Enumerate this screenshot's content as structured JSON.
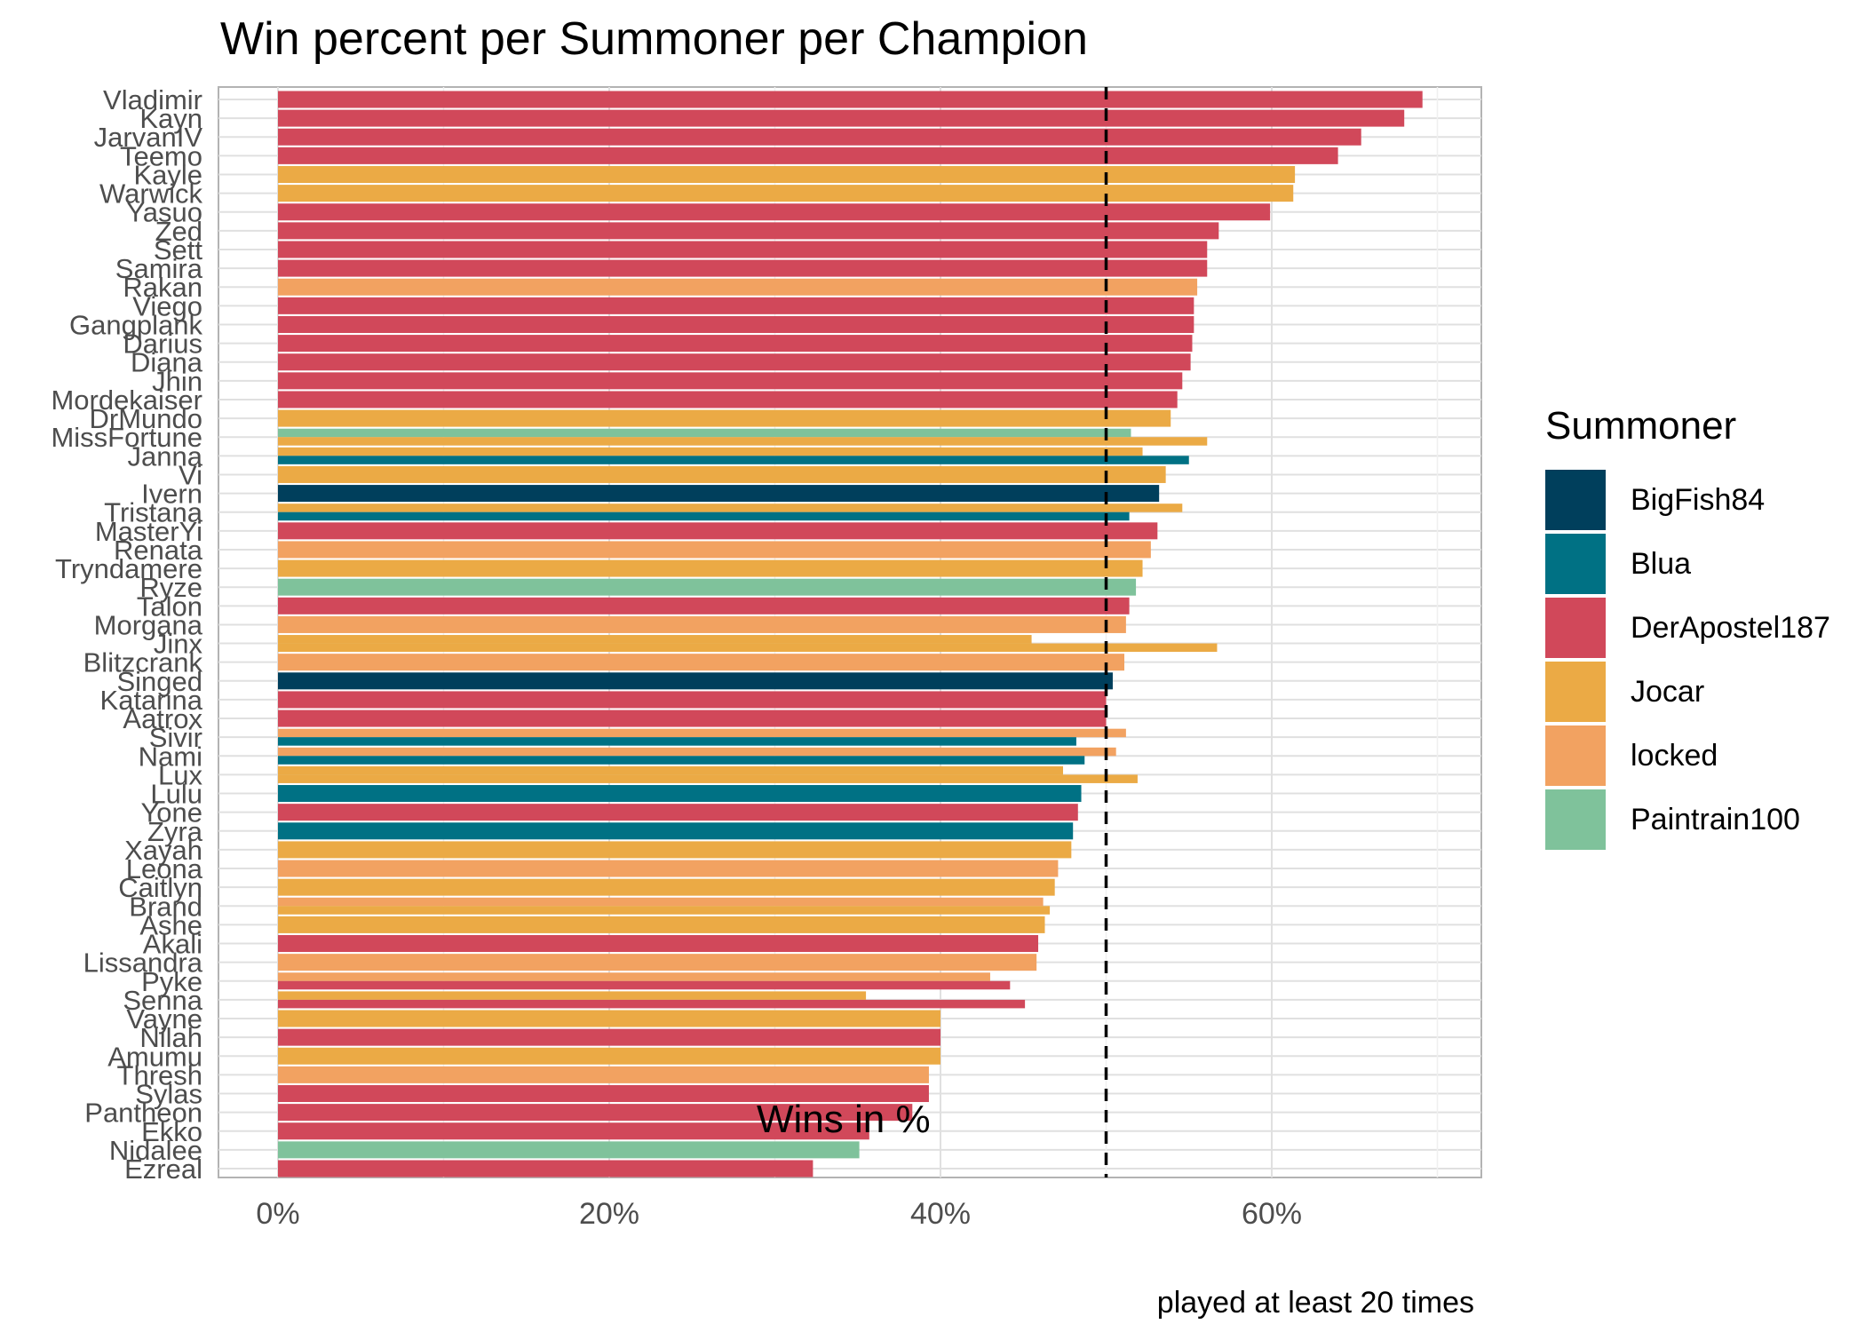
{
  "chart_data": {
    "type": "bar",
    "title": "Win percent per Summoner per Champion",
    "xlabel": "Wins in %",
    "ylabel": "",
    "caption": "played at least 20 times",
    "xlim": [
      -4,
      72.5
    ],
    "x_ticks": [
      0,
      20,
      40,
      60
    ],
    "x_tick_labels": [
      "0%",
      "20%",
      "40%",
      "60%"
    ],
    "reference_line": {
      "x": 50,
      "style": "dashed"
    },
    "legend_title": "Summoner",
    "legend_position": "right",
    "grid": true,
    "summoners": [
      {
        "name": "BigFish84",
        "color": "#003f5c"
      },
      {
        "name": "Blua",
        "color": "#007184"
      },
      {
        "name": "DerApostel187",
        "color": "#d1485a"
      },
      {
        "name": "Jocar",
        "color": "#ebaa45"
      },
      {
        "name": "locked",
        "color": "#f2a261"
      },
      {
        "name": "Paintrain100",
        "color": "#7fc29b"
      }
    ],
    "categories": [
      "Vladimir",
      "Kayn",
      "JarvanIV",
      "Teemo",
      "Kayle",
      "Warwick",
      "Yasuo",
      "Zed",
      "Sett",
      "Samira",
      "Rakan",
      "Viego",
      "Gangplank",
      "Darius",
      "Diana",
      "Jhin",
      "Mordekaiser",
      "DrMundo",
      "MissFortune",
      "Janna",
      "Vi",
      "Ivern",
      "Tristana",
      "MasterYi",
      "Renata",
      "Tryndamere",
      "Ryze",
      "Talon",
      "Morgana",
      "Jinx",
      "Blitzcrank",
      "Singed",
      "Katarina",
      "Aatrox",
      "Sivir",
      "Nami",
      "Lux",
      "Lulu",
      "Yone",
      "Zyra",
      "Xayah",
      "Leona",
      "Caitlyn",
      "Brand",
      "Ashe",
      "Akali",
      "Lissandra",
      "Pyke",
      "Senna",
      "Vayne",
      "Nilah",
      "Amumu",
      "Thresh",
      "Sylas",
      "Pantheon",
      "Ekko",
      "Nidalee",
      "Ezreal"
    ],
    "bars": [
      {
        "champion": "Vladimir",
        "summoner": "DerApostel187",
        "value": 69.1
      },
      {
        "champion": "Kayn",
        "summoner": "DerApostel187",
        "value": 68.0
      },
      {
        "champion": "JarvanIV",
        "summoner": "DerApostel187",
        "value": 65.4
      },
      {
        "champion": "Teemo",
        "summoner": "DerApostel187",
        "value": 64.0
      },
      {
        "champion": "Kayle",
        "summoner": "Jocar",
        "value": 61.4
      },
      {
        "champion": "Warwick",
        "summoner": "Jocar",
        "value": 61.3
      },
      {
        "champion": "Yasuo",
        "summoner": "DerApostel187",
        "value": 59.9
      },
      {
        "champion": "Zed",
        "summoner": "DerApostel187",
        "value": 56.8
      },
      {
        "champion": "Sett",
        "summoner": "DerApostel187",
        "value": 56.1
      },
      {
        "champion": "Samira",
        "summoner": "DerApostel187",
        "value": 56.1
      },
      {
        "champion": "Rakan",
        "summoner": "locked",
        "value": 55.5
      },
      {
        "champion": "Viego",
        "summoner": "DerApostel187",
        "value": 55.3
      },
      {
        "champion": "Gangplank",
        "summoner": "DerApostel187",
        "value": 55.3
      },
      {
        "champion": "Darius",
        "summoner": "DerApostel187",
        "value": 55.2
      },
      {
        "champion": "Diana",
        "summoner": "DerApostel187",
        "value": 55.1
      },
      {
        "champion": "Jhin",
        "summoner": "DerApostel187",
        "value": 54.6
      },
      {
        "champion": "Mordekaiser",
        "summoner": "DerApostel187",
        "value": 54.3
      },
      {
        "champion": "DrMundo",
        "summoner": "Jocar",
        "value": 53.9
      },
      {
        "champion": "MissFortune",
        "summoner": "Paintrain100",
        "value": 51.5
      },
      {
        "champion": "MissFortune",
        "summoner": "Jocar",
        "value": 56.1
      },
      {
        "champion": "Janna",
        "summoner": "Jocar",
        "value": 52.2
      },
      {
        "champion": "Janna",
        "summoner": "Blua",
        "value": 55.0
      },
      {
        "champion": "Vi",
        "summoner": "Jocar",
        "value": 53.6
      },
      {
        "champion": "Ivern",
        "summoner": "BigFish84",
        "value": 53.2
      },
      {
        "champion": "Tristana",
        "summoner": "Jocar",
        "value": 54.6
      },
      {
        "champion": "Tristana",
        "summoner": "Blua",
        "value": 51.4
      },
      {
        "champion": "MasterYi",
        "summoner": "DerApostel187",
        "value": 53.1
      },
      {
        "champion": "Renata",
        "summoner": "locked",
        "value": 52.7
      },
      {
        "champion": "Tryndamere",
        "summoner": "Jocar",
        "value": 52.2
      },
      {
        "champion": "Ryze",
        "summoner": "Paintrain100",
        "value": 51.8
      },
      {
        "champion": "Talon",
        "summoner": "DerApostel187",
        "value": 51.4
      },
      {
        "champion": "Morgana",
        "summoner": "locked",
        "value": 51.2
      },
      {
        "champion": "Jinx",
        "summoner": "Jocar",
        "value": 45.5
      },
      {
        "champion": "Jinx",
        "summoner": "Jocar",
        "value": 56.7
      },
      {
        "champion": "Blitzcrank",
        "summoner": "locked",
        "value": 51.1
      },
      {
        "champion": "Singed",
        "summoner": "BigFish84",
        "value": 50.4
      },
      {
        "champion": "Katarina",
        "summoner": "DerApostel187",
        "value": 50.0
      },
      {
        "champion": "Aatrox",
        "summoner": "DerApostel187",
        "value": 50.0
      },
      {
        "champion": "Sivir",
        "summoner": "locked",
        "value": 51.2
      },
      {
        "champion": "Sivir",
        "summoner": "Blua",
        "value": 48.2
      },
      {
        "champion": "Nami",
        "summoner": "locked",
        "value": 50.6
      },
      {
        "champion": "Nami",
        "summoner": "Blua",
        "value": 48.7
      },
      {
        "champion": "Lux",
        "summoner": "Jocar",
        "value": 47.4
      },
      {
        "champion": "Lux",
        "summoner": "Jocar",
        "value": 51.9
      },
      {
        "champion": "Lulu",
        "summoner": "Blua",
        "value": 48.5
      },
      {
        "champion": "Yone",
        "summoner": "DerApostel187",
        "value": 48.3
      },
      {
        "champion": "Zyra",
        "summoner": "Blua",
        "value": 48.0
      },
      {
        "champion": "Xayah",
        "summoner": "Jocar",
        "value": 47.9
      },
      {
        "champion": "Leona",
        "summoner": "locked",
        "value": 47.1
      },
      {
        "champion": "Caitlyn",
        "summoner": "Jocar",
        "value": 46.9
      },
      {
        "champion": "Brand",
        "summoner": "locked",
        "value": 46.2
      },
      {
        "champion": "Brand",
        "summoner": "Jocar",
        "value": 46.6
      },
      {
        "champion": "Ashe",
        "summoner": "Jocar",
        "value": 46.3
      },
      {
        "champion": "Akali",
        "summoner": "DerApostel187",
        "value": 45.9
      },
      {
        "champion": "Lissandra",
        "summoner": "locked",
        "value": 45.8
      },
      {
        "champion": "Pyke",
        "summoner": "locked",
        "value": 43.0
      },
      {
        "champion": "Pyke",
        "summoner": "DerApostel187",
        "value": 44.2
      },
      {
        "champion": "Senna",
        "summoner": "Jocar",
        "value": 35.5
      },
      {
        "champion": "Senna",
        "summoner": "DerApostel187",
        "value": 45.1
      },
      {
        "champion": "Vayne",
        "summoner": "Jocar",
        "value": 40.0
      },
      {
        "champion": "Nilah",
        "summoner": "DerApostel187",
        "value": 40.0
      },
      {
        "champion": "Amumu",
        "summoner": "Jocar",
        "value": 40.0
      },
      {
        "champion": "Thresh",
        "summoner": "locked",
        "value": 39.3
      },
      {
        "champion": "Sylas",
        "summoner": "DerApostel187",
        "value": 39.3
      },
      {
        "champion": "Pantheon",
        "summoner": "DerApostel187",
        "value": 38.3
      },
      {
        "champion": "Ekko",
        "summoner": "DerApostel187",
        "value": 35.7
      },
      {
        "champion": "Nidalee",
        "summoner": "Paintrain100",
        "value": 35.1
      },
      {
        "champion": "Ezreal",
        "summoner": "DerApostel187",
        "value": 32.3
      }
    ]
  }
}
